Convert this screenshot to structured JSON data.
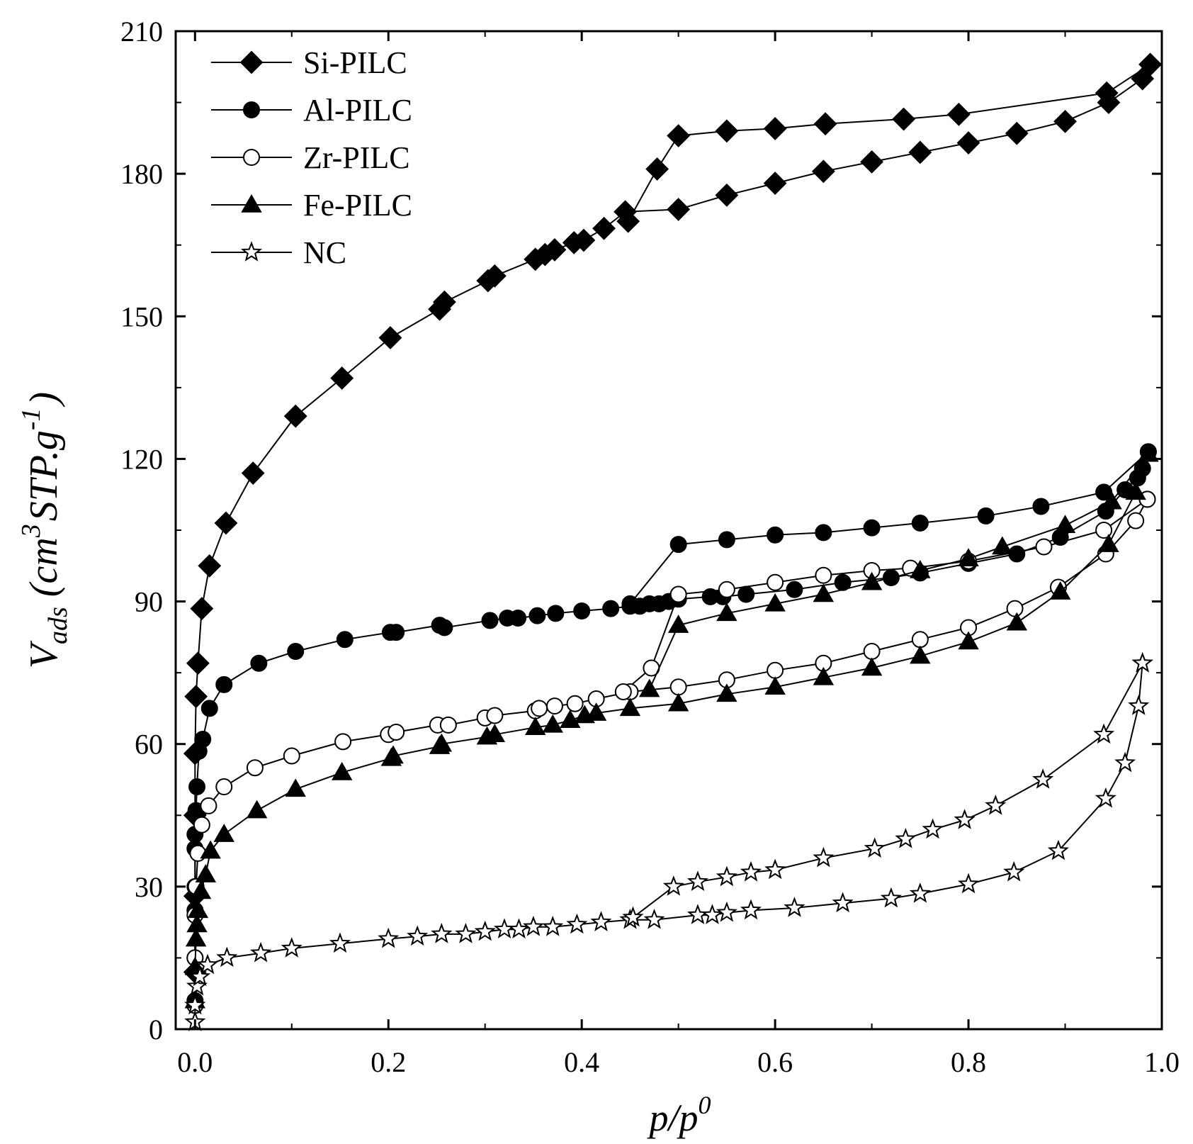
{
  "chart_data": {
    "type": "line",
    "title": "",
    "xlabel": "p/p0",
    "xlabel_parts": {
      "main": "p/p",
      "sup": "0"
    },
    "ylabel": "V_ads (cm3 STP.g-1)",
    "ylabel_parts": {
      "v": "V",
      "sub": "ads",
      "open": "(cm",
      "sup3": "3",
      "mid": "STP.g",
      "supneg": "-1",
      "close": ")"
    },
    "xlim": [
      -0.02,
      1.0
    ],
    "ylim": [
      0,
      210
    ],
    "xticks": [
      0.0,
      0.2,
      0.4,
      0.6,
      0.8,
      1.0
    ],
    "xtick_labels": [
      "0.0",
      "0.2",
      "0.4",
      "0.6",
      "0.8",
      "1.0"
    ],
    "yticks": [
      0,
      30,
      60,
      90,
      120,
      150,
      180,
      210
    ],
    "ytick_labels": [
      "0",
      "30",
      "60",
      "90",
      "120",
      "150",
      "180",
      "210"
    ],
    "grid": false,
    "legend_position": "top-left",
    "series": [
      {
        "name": "Si-PILC",
        "marker": "diamond",
        "fill": "#000000",
        "adsorption": [
          [
            0.0,
            12
          ],
          [
            0.0,
            28
          ],
          [
            0.0,
            45
          ],
          [
            0.0,
            58
          ],
          [
            0.001,
            70
          ],
          [
            0.003,
            77
          ],
          [
            0.007,
            88.5
          ],
          [
            0.015,
            97.5
          ],
          [
            0.032,
            106.5
          ],
          [
            0.06,
            117
          ],
          [
            0.104,
            129
          ],
          [
            0.152,
            137
          ],
          [
            0.202,
            145.5
          ],
          [
            0.253,
            151.5
          ],
          [
            0.258,
            153
          ],
          [
            0.303,
            157.5
          ],
          [
            0.31,
            158.5
          ],
          [
            0.352,
            162
          ],
          [
            0.362,
            163
          ],
          [
            0.372,
            164
          ],
          [
            0.392,
            165.5
          ],
          [
            0.402,
            166
          ],
          [
            0.423,
            168.5
          ],
          [
            0.445,
            172
          ],
          [
            0.5,
            172.5
          ],
          [
            0.55,
            175.5
          ],
          [
            0.6,
            178
          ],
          [
            0.65,
            180.5
          ],
          [
            0.7,
            182.5
          ],
          [
            0.75,
            184.5
          ],
          [
            0.8,
            186.5
          ],
          [
            0.85,
            188.5
          ],
          [
            0.9,
            191
          ],
          [
            0.945,
            195
          ],
          [
            0.98,
            200
          ],
          [
            0.988,
            203
          ]
        ],
        "desorption": [
          [
            0.988,
            203
          ],
          [
            0.943,
            197
          ],
          [
            0.79,
            192.5
          ],
          [
            0.733,
            191.5
          ],
          [
            0.652,
            190.5
          ],
          [
            0.6,
            189.5
          ],
          [
            0.55,
            189
          ],
          [
            0.5,
            188
          ],
          [
            0.478,
            181
          ],
          [
            0.448,
            170
          ]
        ]
      },
      {
        "name": "Al-PILC",
        "marker": "circle",
        "fill": "#000000",
        "adsorption": [
          [
            0.0,
            6
          ],
          [
            0.0,
            15
          ],
          [
            0.0,
            25
          ],
          [
            0.0,
            30
          ],
          [
            0.0,
            38
          ],
          [
            0.0,
            41
          ],
          [
            0.001,
            46
          ],
          [
            0.002,
            51
          ],
          [
            0.004,
            58.5
          ],
          [
            0.008,
            61
          ],
          [
            0.015,
            67.5
          ],
          [
            0.03,
            72.5
          ],
          [
            0.066,
            77
          ],
          [
            0.104,
            79.5
          ],
          [
            0.155,
            82
          ],
          [
            0.202,
            83.5
          ],
          [
            0.208,
            83.5
          ],
          [
            0.253,
            85
          ],
          [
            0.258,
            84.5
          ],
          [
            0.305,
            86
          ],
          [
            0.323,
            86.5
          ],
          [
            0.334,
            86.5
          ],
          [
            0.354,
            87
          ],
          [
            0.373,
            87.5
          ],
          [
            0.4,
            88
          ],
          [
            0.43,
            88.5
          ],
          [
            0.45,
            89
          ],
          [
            0.46,
            89
          ],
          [
            0.47,
            89.5
          ],
          [
            0.48,
            89.5
          ],
          [
            0.49,
            90
          ],
          [
            0.5,
            90.5
          ],
          [
            0.533,
            91
          ],
          [
            0.546,
            91
          ],
          [
            0.57,
            91.5
          ],
          [
            0.62,
            92.5
          ],
          [
            0.67,
            94
          ],
          [
            0.72,
            95
          ],
          [
            0.75,
            96
          ],
          [
            0.8,
            98
          ],
          [
            0.85,
            100
          ],
          [
            0.895,
            103.5
          ],
          [
            0.942,
            109
          ],
          [
            0.962,
            113.5
          ],
          [
            0.975,
            116
          ],
          [
            0.98,
            118
          ],
          [
            0.986,
            121.5
          ]
        ],
        "desorption": [
          [
            0.986,
            121.5
          ],
          [
            0.94,
            113
          ],
          [
            0.875,
            110
          ],
          [
            0.818,
            108
          ],
          [
            0.75,
            106.5
          ],
          [
            0.7,
            105.5
          ],
          [
            0.65,
            104.5
          ],
          [
            0.6,
            104
          ],
          [
            0.55,
            103
          ],
          [
            0.5,
            102
          ],
          [
            0.45,
            89.5
          ]
        ]
      },
      {
        "name": "Zr-PILC",
        "marker": "circle",
        "fill": "#ffffff",
        "adsorption": [
          [
            0.0,
            5
          ],
          [
            0.0,
            15
          ],
          [
            0.0,
            24
          ],
          [
            0.001,
            30
          ],
          [
            0.003,
            37
          ],
          [
            0.007,
            43
          ],
          [
            0.014,
            47
          ],
          [
            0.03,
            51
          ],
          [
            0.062,
            55
          ],
          [
            0.1,
            57.5
          ],
          [
            0.153,
            60.5
          ],
          [
            0.2,
            62
          ],
          [
            0.208,
            62.5
          ],
          [
            0.251,
            64
          ],
          [
            0.262,
            64
          ],
          [
            0.3,
            65.5
          ],
          [
            0.31,
            66
          ],
          [
            0.352,
            67
          ],
          [
            0.356,
            67.5
          ],
          [
            0.372,
            68
          ],
          [
            0.393,
            68.5
          ],
          [
            0.415,
            69.5
          ],
          [
            0.45,
            71
          ],
          [
            0.5,
            72
          ],
          [
            0.55,
            73.5
          ],
          [
            0.6,
            75.5
          ],
          [
            0.65,
            77
          ],
          [
            0.7,
            79.5
          ],
          [
            0.75,
            82
          ],
          [
            0.8,
            84.5
          ],
          [
            0.848,
            88.5
          ],
          [
            0.893,
            93
          ],
          [
            0.942,
            100
          ],
          [
            0.973,
            107
          ],
          [
            0.985,
            111.5
          ]
        ],
        "desorption": [
          [
            0.985,
            111.5
          ],
          [
            0.94,
            105
          ],
          [
            0.878,
            101.5
          ],
          [
            0.8,
            98.5
          ],
          [
            0.74,
            97
          ],
          [
            0.7,
            96.5
          ],
          [
            0.65,
            95.5
          ],
          [
            0.6,
            94
          ],
          [
            0.55,
            92.5
          ],
          [
            0.5,
            91.5
          ],
          [
            0.472,
            76
          ],
          [
            0.443,
            71
          ]
        ]
      },
      {
        "name": "Fe-PILC",
        "marker": "triangle",
        "fill": "#000000",
        "adsorption": [
          [
            0.0,
            6
          ],
          [
            0.0,
            13
          ],
          [
            0.001,
            19
          ],
          [
            0.002,
            22
          ],
          [
            0.003,
            25
          ],
          [
            0.006,
            29
          ],
          [
            0.011,
            32.5
          ],
          [
            0.016,
            37.5
          ],
          [
            0.03,
            41
          ],
          [
            0.064,
            46
          ],
          [
            0.104,
            50.5
          ],
          [
            0.152,
            54
          ],
          [
            0.203,
            57
          ],
          [
            0.205,
            57.5
          ],
          [
            0.253,
            59.5
          ],
          [
            0.255,
            60
          ],
          [
            0.302,
            61.5
          ],
          [
            0.31,
            62
          ],
          [
            0.352,
            63.5
          ],
          [
            0.37,
            64
          ],
          [
            0.388,
            65
          ],
          [
            0.403,
            66
          ],
          [
            0.415,
            66.5
          ],
          [
            0.45,
            67.5
          ],
          [
            0.5,
            68.5
          ],
          [
            0.55,
            70.5
          ],
          [
            0.6,
            72
          ],
          [
            0.65,
            74
          ],
          [
            0.7,
            76
          ],
          [
            0.75,
            78.5
          ],
          [
            0.8,
            81.5
          ],
          [
            0.85,
            85.5
          ],
          [
            0.895,
            92
          ],
          [
            0.945,
            102
          ],
          [
            0.973,
            113
          ],
          [
            0.986,
            121
          ]
        ],
        "desorption": [
          [
            0.986,
            121
          ],
          [
            0.948,
            111
          ],
          [
            0.9,
            106
          ],
          [
            0.835,
            101.5
          ],
          [
            0.8,
            99
          ],
          [
            0.75,
            96.5
          ],
          [
            0.7,
            94
          ],
          [
            0.65,
            91.5
          ],
          [
            0.6,
            89.5
          ],
          [
            0.55,
            87.5
          ],
          [
            0.5,
            85
          ],
          [
            0.47,
            71.5
          ]
        ]
      },
      {
        "name": "NC",
        "marker": "star",
        "fill": "#ffffff",
        "adsorption": [
          [
            0.0,
            1.5
          ],
          [
            0.0,
            5
          ],
          [
            0.002,
            9
          ],
          [
            0.005,
            11
          ],
          [
            0.013,
            13.5
          ],
          [
            0.033,
            15
          ],
          [
            0.068,
            16
          ],
          [
            0.1,
            17
          ],
          [
            0.15,
            18
          ],
          [
            0.2,
            19
          ],
          [
            0.23,
            19.5
          ],
          [
            0.255,
            20
          ],
          [
            0.28,
            20
          ],
          [
            0.3,
            20.5
          ],
          [
            0.32,
            21
          ],
          [
            0.335,
            21
          ],
          [
            0.35,
            21.5
          ],
          [
            0.37,
            21.5
          ],
          [
            0.395,
            22
          ],
          [
            0.42,
            22.5
          ],
          [
            0.45,
            23
          ],
          [
            0.475,
            23
          ],
          [
            0.52,
            24
          ],
          [
            0.535,
            24
          ],
          [
            0.55,
            24.5
          ],
          [
            0.575,
            25
          ],
          [
            0.62,
            25.5
          ],
          [
            0.67,
            26.5
          ],
          [
            0.72,
            27.5
          ],
          [
            0.75,
            28.5
          ],
          [
            0.8,
            30.5
          ],
          [
            0.847,
            33
          ],
          [
            0.893,
            37.5
          ],
          [
            0.942,
            48.5
          ],
          [
            0.962,
            56
          ],
          [
            0.976,
            68
          ],
          [
            0.98,
            77
          ]
        ],
        "desorption": [
          [
            0.98,
            77
          ],
          [
            0.94,
            62
          ],
          [
            0.877,
            52.5
          ],
          [
            0.828,
            47
          ],
          [
            0.796,
            44
          ],
          [
            0.763,
            42
          ],
          [
            0.735,
            40
          ],
          [
            0.703,
            38
          ],
          [
            0.65,
            36
          ],
          [
            0.6,
            33.5
          ],
          [
            0.575,
            33
          ],
          [
            0.55,
            32
          ],
          [
            0.52,
            31
          ],
          [
            0.495,
            30
          ],
          [
            0.453,
            23.5
          ]
        ]
      }
    ]
  }
}
